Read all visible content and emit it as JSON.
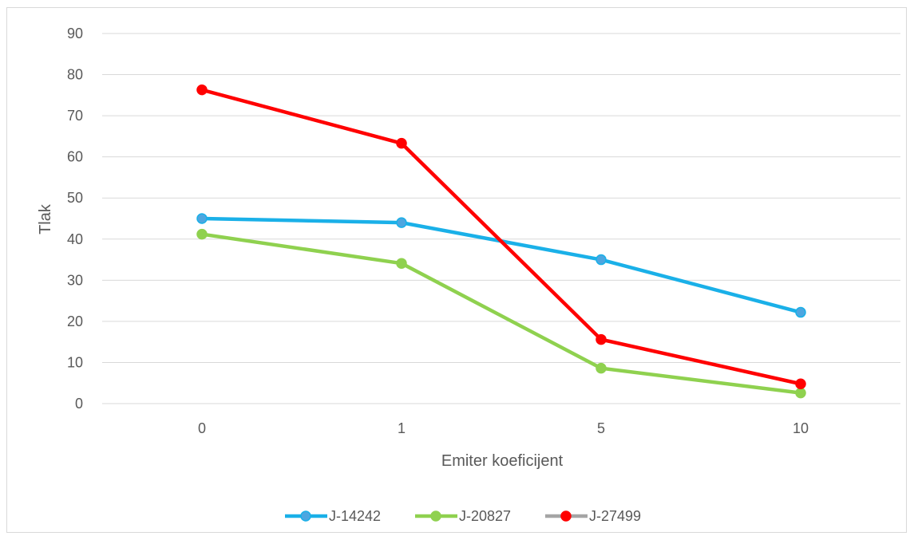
{
  "chart_data": {
    "type": "line",
    "title": "",
    "xlabel": "Emiter koeficijent",
    "ylabel": "Tlak",
    "categories": [
      "0",
      "1",
      "5",
      "10"
    ],
    "ylim": [
      0,
      90
    ],
    "yticks": [
      0,
      10,
      20,
      30,
      40,
      50,
      60,
      70,
      80,
      90
    ],
    "grid": true,
    "legend_position": "bottom",
    "series": [
      {
        "name": "J-14242",
        "values": [
          45,
          44,
          35,
          22.2
        ],
        "color": "#1ab0e8",
        "marker_color": "#4da6e0",
        "legend_line_color": "#1ab0e8"
      },
      {
        "name": "J-20827",
        "values": [
          41.2,
          34.1,
          8.6,
          2.6
        ],
        "color": "#8fd14f",
        "marker_color": "#8fd14f",
        "legend_line_color": "#8fd14f"
      },
      {
        "name": "J-27499",
        "values": [
          76.3,
          63.3,
          15.6,
          4.8
        ],
        "color": "#ff0000",
        "marker_color": "#ff0000",
        "legend_line_color": "#a5a5a5"
      }
    ]
  },
  "colors": {
    "grid": "#d9d9d9",
    "text": "#595959",
    "frame": "#d9d9d9"
  }
}
